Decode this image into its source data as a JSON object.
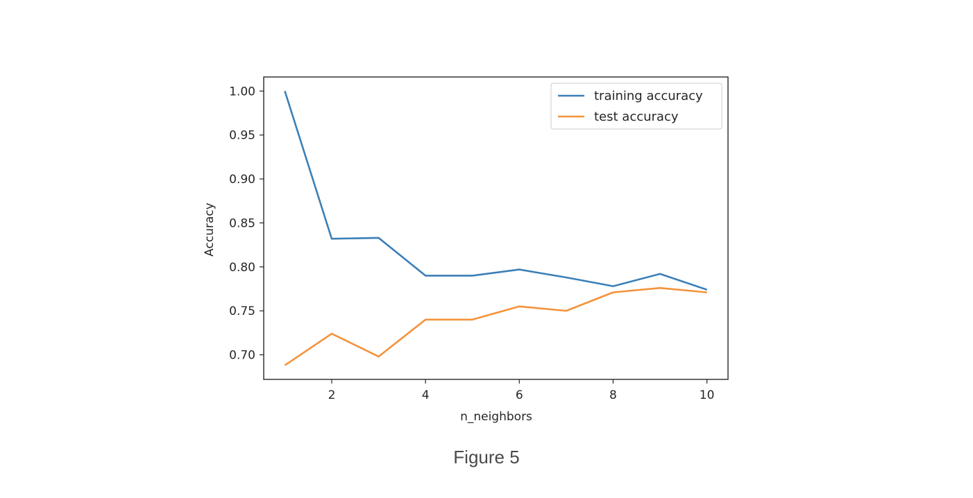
{
  "caption": "Figure 5",
  "chart_data": {
    "type": "line",
    "title": "",
    "xlabel": "n_neighbors",
    "ylabel": "Accuracy",
    "x": [
      1,
      2,
      3,
      4,
      5,
      6,
      7,
      8,
      9,
      10
    ],
    "xlim": [
      0.55,
      10.45
    ],
    "ylim": [
      0.672,
      1.016
    ],
    "xticks": [
      2,
      4,
      6,
      8,
      10
    ],
    "xtick_labels": [
      "2",
      "4",
      "6",
      "8",
      "10"
    ],
    "yticks": [
      0.7,
      0.75,
      0.8,
      0.85,
      0.9,
      0.95,
      1.0
    ],
    "ytick_labels": [
      "0.70",
      "0.75",
      "0.80",
      "0.85",
      "0.90",
      "0.95",
      "1.00"
    ],
    "grid": false,
    "legend_position": "top-right",
    "series": [
      {
        "name": "training accuracy",
        "color": "#3b7fb8",
        "values": [
          1.0,
          0.832,
          0.833,
          0.79,
          0.79,
          0.797,
          0.788,
          0.778,
          0.792,
          0.774
        ]
      },
      {
        "name": "test accuracy",
        "color": "#f5923b",
        "values": [
          0.688,
          0.724,
          0.698,
          0.74,
          0.74,
          0.755,
          0.75,
          0.771,
          0.776,
          0.771
        ]
      }
    ]
  }
}
